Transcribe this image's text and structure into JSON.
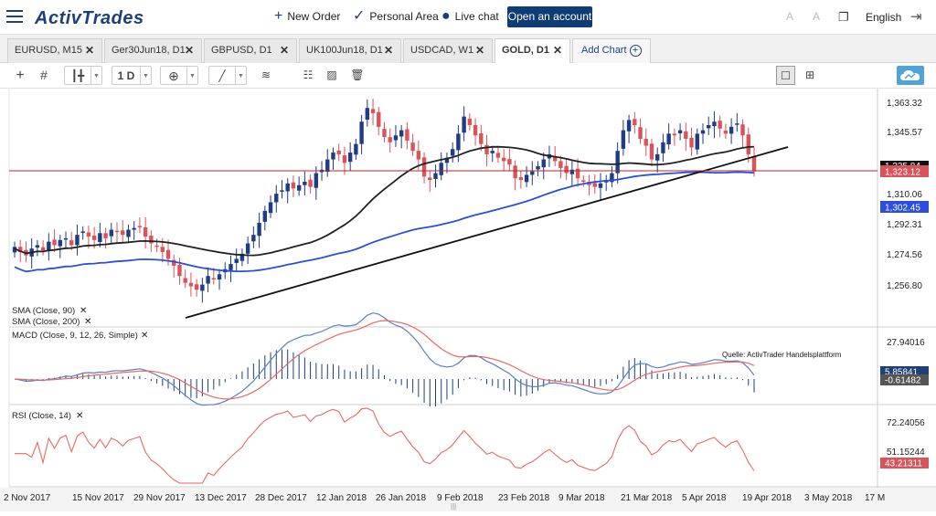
{
  "header": {
    "logo_text": "ActivTrades",
    "new_order": "New Order",
    "personal_area": "Personal Area",
    "live_chat": "Live chat",
    "open_account": "Open an account",
    "language": "English"
  },
  "tabs": [
    {
      "label": "EURUSD, M15"
    },
    {
      "label": "Ger30Jun18, D1"
    },
    {
      "label": "GBPUSD, D1"
    },
    {
      "label": "UK100Jun18, D1"
    },
    {
      "label": "USDCAD, W1"
    },
    {
      "label": "GOLD, D1",
      "active": true
    }
  ],
  "add_chart": "Add Chart",
  "toolbar": {
    "timeframe": "1 D"
  },
  "colors": {
    "brand": "#1d3f7a",
    "bull": "#1f3c84",
    "bear": "#d9535b",
    "sma90": "#222222",
    "sma200": "#2b4de0",
    "macd": "#5a7fc0",
    "signal": "#e66a63",
    "rsi": "#e66a63",
    "price_line": "#b32630"
  },
  "price_axis": {
    "ticks": [
      "1,363.32",
      "1,345.57",
      "1,310.06",
      "1,292.31",
      "1,274.56",
      "1,256.80"
    ],
    "current_price": "1,323.12",
    "sma200_value": "1,302.45",
    "hidden_label": "1,335.84"
  },
  "macd_axis": {
    "ticks": [
      "27.94016"
    ],
    "macd_value": "5.85841",
    "signal_value": "-0.61482"
  },
  "rsi_axis": {
    "ticks": [
      "72.24056",
      "51.15244"
    ],
    "current": "43.21311"
  },
  "indicators": {
    "sma90": "SMA (Close, 90)",
    "sma200": "SMA (Close, 200)",
    "macd": "MACD (Close, 9, 12, 26, Simple)",
    "rsi": "RSI (Close, 14)"
  },
  "source_note": "Quelle: ActivTrader Handelsplattform",
  "x_axis": [
    "2 Nov 2017",
    "15 Nov 2017",
    "29 Nov 2017",
    "13 Dec 2017",
    "28 Dec 2017",
    "12 Jan 2018",
    "26 Jan 2018",
    "9 Feb 2018",
    "23 Feb 2018",
    "9 Mar 2018",
    "21 Mar 2018",
    "5 Apr 2018",
    "19 Apr 2018",
    "3 May 2018",
    "17 M"
  ],
  "chart_data": {
    "type": "candlestick",
    "closes": [
      1279,
      1276,
      1274,
      1278,
      1280,
      1277,
      1282,
      1280,
      1283,
      1284,
      1280,
      1286,
      1288,
      1285,
      1283,
      1287,
      1284,
      1289,
      1288,
      1286,
      1289,
      1290,
      1291,
      1285,
      1281,
      1279,
      1276,
      1272,
      1268,
      1262,
      1258,
      1256,
      1254,
      1257,
      1262,
      1260,
      1263,
      1266,
      1269,
      1272,
      1275,
      1281,
      1286,
      1293,
      1300,
      1305,
      1310,
      1312,
      1316,
      1313,
      1315,
      1317,
      1314,
      1322,
      1324,
      1330,
      1334,
      1333,
      1328,
      1334,
      1339,
      1352,
      1360,
      1357,
      1349,
      1343,
      1340,
      1344,
      1347,
      1341,
      1335,
      1330,
      1320,
      1318,
      1322,
      1328,
      1331,
      1336,
      1345,
      1355,
      1350,
      1344,
      1339,
      1333,
      1335,
      1331,
      1329,
      1327,
      1319,
      1318,
      1321,
      1323,
      1326,
      1330,
      1333,
      1329,
      1325,
      1322,
      1324,
      1319,
      1317,
      1315,
      1314,
      1316,
      1318,
      1322,
      1335,
      1347,
      1353,
      1350,
      1342,
      1338,
      1330,
      1333,
      1340,
      1345,
      1344,
      1347,
      1342,
      1337,
      1345,
      1347,
      1350,
      1352,
      1348,
      1345,
      1349,
      1351,
      1344,
      1333,
      1323
    ]
  }
}
